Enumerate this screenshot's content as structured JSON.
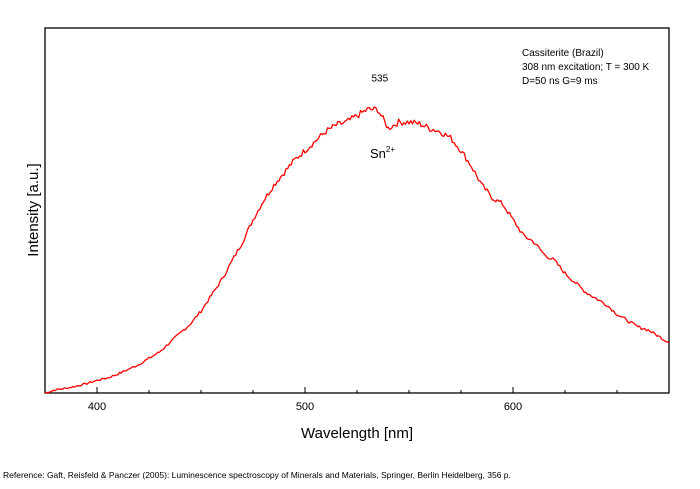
{
  "chart_data": {
    "type": "line",
    "xlabel": "Wavelength [nm]",
    "ylabel": "Intensity [a.u.]",
    "xlim": [
      375,
      675
    ],
    "ylim": [
      0,
      1
    ],
    "x_ticks": [
      400,
      500,
      600
    ],
    "x_tick_labels": [
      "400",
      "500",
      "600"
    ],
    "y_ticks_labeled": false,
    "grid": false,
    "legend": "none",
    "series": [
      {
        "color": "#ff0000",
        "x": [
          375,
          380,
          385,
          390,
          395,
          400,
          405,
          410,
          415,
          420,
          425,
          430,
          435,
          440,
          445,
          450,
          455,
          460,
          465,
          470,
          475,
          480,
          485,
          490,
          495,
          500,
          505,
          510,
          515,
          520,
          525,
          530,
          535,
          540,
          545,
          550,
          555,
          560,
          565,
          570,
          575,
          580,
          585,
          590,
          595,
          600,
          605,
          610,
          615,
          620,
          625,
          630,
          635,
          640,
          645,
          650,
          655,
          660,
          665,
          670,
          675
        ],
        "y": [
          0.0,
          0.01,
          0.015,
          0.022,
          0.03,
          0.04,
          0.048,
          0.06,
          0.075,
          0.09,
          0.11,
          0.13,
          0.16,
          0.19,
          0.22,
          0.26,
          0.31,
          0.36,
          0.42,
          0.48,
          0.55,
          0.61,
          0.66,
          0.7,
          0.74,
          0.77,
          0.8,
          0.83,
          0.85,
          0.86,
          0.88,
          0.9,
          0.9,
          0.84,
          0.86,
          0.86,
          0.855,
          0.84,
          0.83,
          0.81,
          0.77,
          0.72,
          0.66,
          0.62,
          0.6,
          0.55,
          0.5,
          0.48,
          0.44,
          0.42,
          0.38,
          0.35,
          0.32,
          0.3,
          0.28,
          0.25,
          0.23,
          0.21,
          0.2,
          0.18,
          0.16
        ]
      }
    ],
    "annotations": [
      {
        "text": "535",
        "x": 535,
        "y": 0.9
      }
    ]
  },
  "info_box": {
    "line1": "Cassiterite (Brazil)",
    "line2": "308 nm excitation; T = 300 K",
    "line3": "D=50 ns G=9 ms"
  },
  "species_label": {
    "base": "Sn",
    "superscript": "2+"
  },
  "reference": "Reference: Gaft, Reisfeld & Panczer (2005): Luminescence spectroscopy of Minerals and Materials, Springer, Berlin Heidelberg, 356 p."
}
